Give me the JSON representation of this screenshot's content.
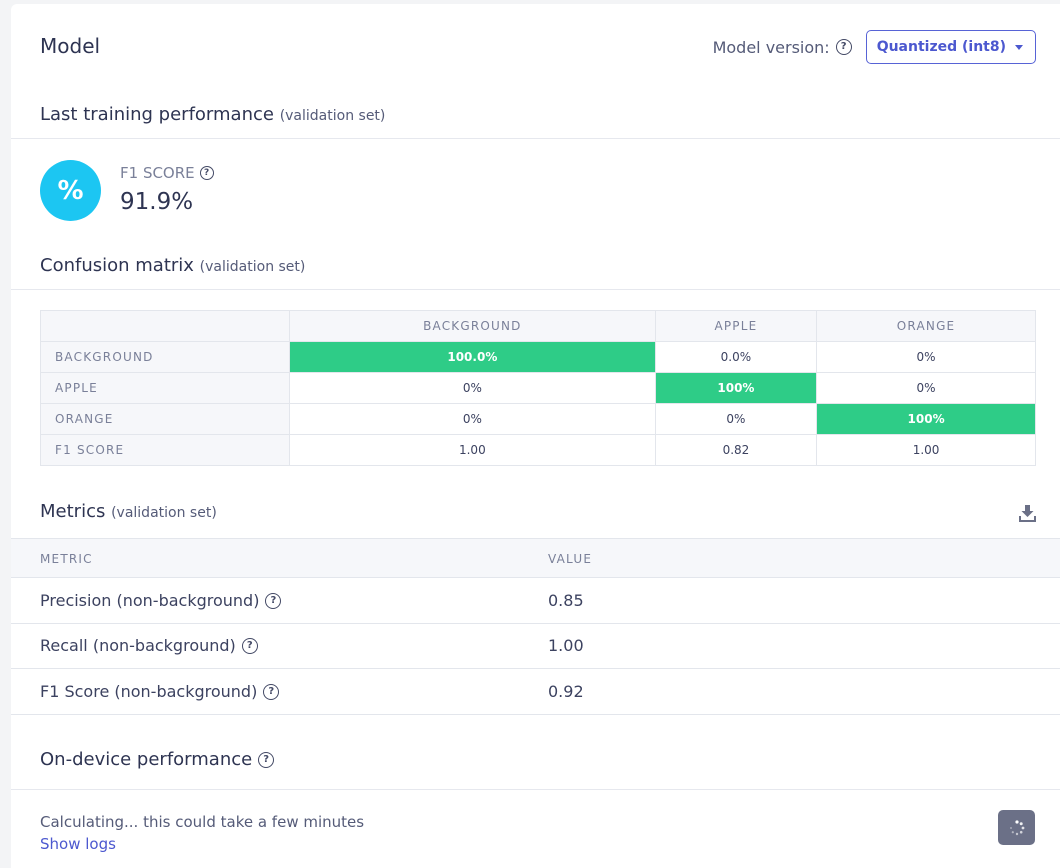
{
  "model": {
    "title": "Model",
    "version_label": "Model version:",
    "version_selected": "Quantized (int8)"
  },
  "training": {
    "title": "Last training performance",
    "subtitle": "(validation set)",
    "f1_icon_glyph": "%",
    "f1_label": "F1 SCORE",
    "f1_value": "91.9%"
  },
  "confusion": {
    "title": "Confusion matrix",
    "subtitle": "(validation set)",
    "columns": [
      "BACKGROUND",
      "APPLE",
      "ORANGE"
    ],
    "rows": [
      {
        "label": "BACKGROUND",
        "cells": [
          "100.0%",
          "0.0%",
          "0%"
        ]
      },
      {
        "label": "APPLE",
        "cells": [
          "0%",
          "100%",
          "0%"
        ]
      },
      {
        "label": "ORANGE",
        "cells": [
          "0%",
          "0%",
          "100%"
        ]
      },
      {
        "label": "F1 SCORE",
        "cells": [
          "1.00",
          "0.82",
          "1.00"
        ]
      }
    ],
    "highlight_color": "#2ecc87"
  },
  "metrics": {
    "title": "Metrics",
    "subtitle": "(validation set)",
    "col_metric": "METRIC",
    "col_value": "VALUE",
    "rows": [
      {
        "name": "Precision (non-background)",
        "value": "0.85"
      },
      {
        "name": "Recall (non-background)",
        "value": "1.00"
      },
      {
        "name": "F1 Score (non-background)",
        "value": "0.92"
      }
    ]
  },
  "device": {
    "title": "On-device performance",
    "status": "Calculating... this could take a few minutes",
    "logs_link": "Show logs"
  },
  "colors": {
    "accent": "#4c58cf",
    "f1_circle": "#1cc6f2",
    "highlight": "#2ecc87"
  }
}
